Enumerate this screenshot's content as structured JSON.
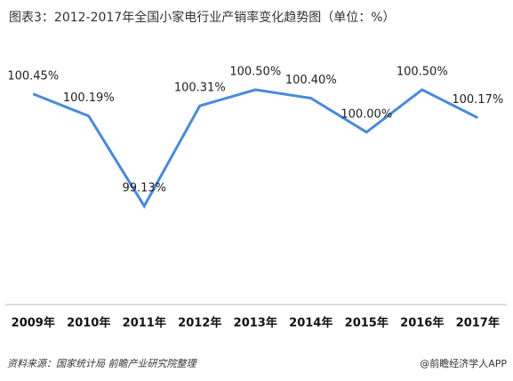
{
  "chart_data": {
    "type": "line",
    "title": "图表3：2012-2017年全国小家电行业产销率变化趋势图（单位：%）",
    "categories": [
      "2009年",
      "2010年",
      "2011年",
      "2012年",
      "2013年",
      "2014年",
      "2015年",
      "2016年",
      "2017年"
    ],
    "series": [
      {
        "color": "#4a89dc",
        "values": [
          100.45,
          100.19,
          99.13,
          100.31,
          100.5,
          100.4,
          100.0,
          100.5,
          100.17
        ],
        "value_labels": [
          "100.45%",
          "100.19%",
          "99.13%",
          "100.31%",
          "100.50%",
          "100.40%",
          "100.00%",
          "100.50%",
          "100.17%"
        ]
      }
    ],
    "source": "资料来源：国家统计局 前瞻产业研究院整理",
    "credit": "@前瞻经济学人APP"
  }
}
